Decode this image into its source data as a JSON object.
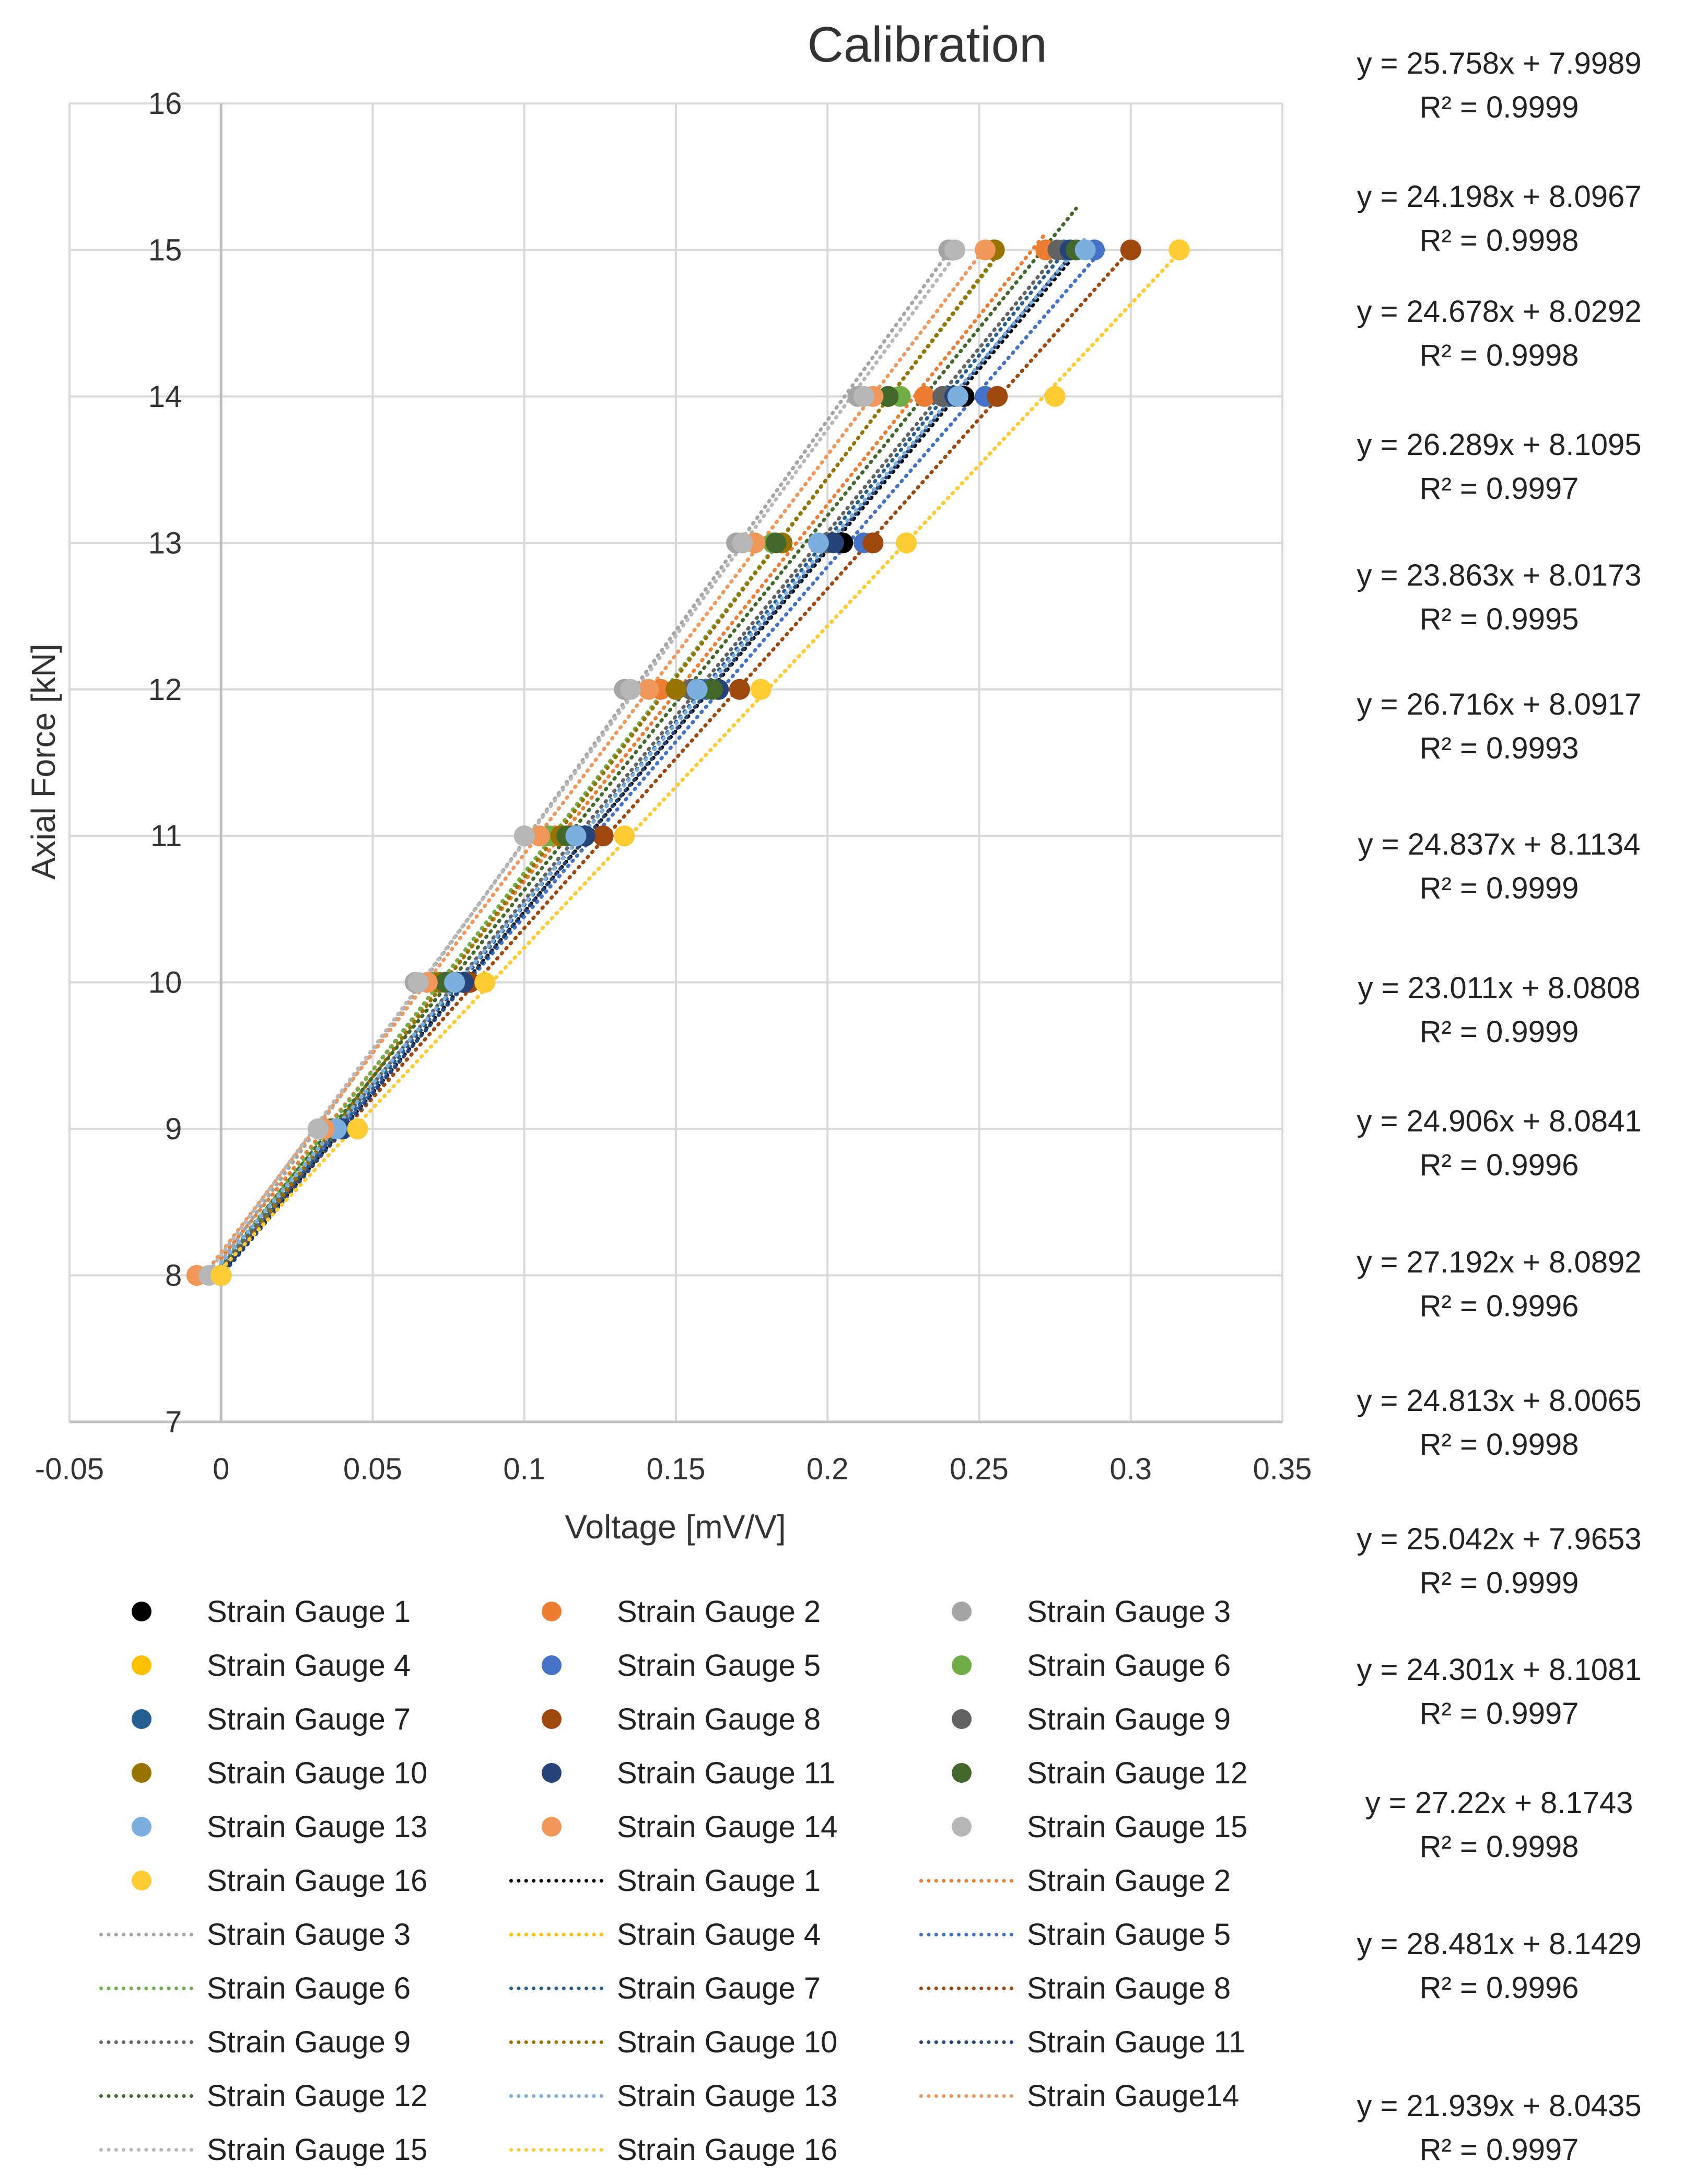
{
  "chart_data": {
    "type": "scatter",
    "title": "Calibration",
    "xlabel": "Voltage [mV/V]",
    "ylabel": "Axial Force [kN]",
    "xlim": [
      -0.05,
      0.35
    ],
    "ylim": [
      7,
      16
    ],
    "x_ticks": [
      -0.05,
      0,
      0.05,
      0.1,
      0.15,
      0.2,
      0.25,
      0.3,
      0.35
    ],
    "x_tick_labels": [
      "-0.05",
      "0",
      "0.05",
      "0.1",
      "0.15",
      "0.2",
      "0.25",
      "0.3",
      "0.35"
    ],
    "y_ticks": [
      7,
      8,
      9,
      10,
      11,
      12,
      13,
      14,
      15,
      16
    ],
    "y_tick_labels": [
      "7",
      "8",
      "9",
      "10",
      "11",
      "12",
      "13",
      "14",
      "15",
      "16"
    ],
    "grid": true,
    "trendline_style": "dotted linear",
    "y_values": [
      8,
      9,
      10,
      11,
      12,
      13,
      14,
      15
    ],
    "series": [
      {
        "name": "Strain Gauge 1",
        "trend_label": "Strain Gauge 1",
        "color": "#000000",
        "x": [
          0,
          0.04,
          0.08,
          0.12,
          0.16,
          0.205,
          0.245,
          0.28
        ]
      },
      {
        "name": "Strain Gauge 2",
        "trend_label": "Strain Gauge 2",
        "color": "#ED7D31",
        "x": [
          0,
          0.036,
          0.072,
          0.11,
          0.145,
          0.185,
          0.232,
          0.272
        ]
      },
      {
        "name": "Strain Gauge 3",
        "trend_label": "Strain Gauge 3",
        "color": "#A5A5A5",
        "x": [
          0,
          0.032,
          0.064,
          0.1,
          0.133,
          0.17,
          0.21,
          0.24
        ]
      },
      {
        "name": "Strain Gauge 4",
        "trend_label": "Strain Gauge 4",
        "color": "#FFC000",
        "x": [
          0,
          0.045,
          0.087,
          0.133,
          0.178,
          0.226,
          0.275,
          0.316
        ]
      },
      {
        "name": "Strain Gauge 5",
        "trend_label": "Strain Gauge 5",
        "color": "#4472C4",
        "x": [
          0,
          0.04,
          0.08,
          0.12,
          0.16,
          0.212,
          0.252,
          0.288
        ]
      },
      {
        "name": "Strain Gauge 6",
        "trend_label": "Strain Gauge 6",
        "color": "#70AD47",
        "x": [
          0,
          0.034,
          0.07,
          0.108,
          0.15,
          0.182,
          0.224,
          0.255
        ]
      },
      {
        "name": "Strain Gauge 7",
        "trend_label": "Strain Gauge 7",
        "color": "#255E91",
        "x": [
          0,
          0.039,
          0.078,
          0.118,
          0.158,
          0.2,
          0.24,
          0.278
        ]
      },
      {
        "name": "Strain Gauge 8",
        "trend_label": "Strain Gauge 8",
        "color": "#9E480E",
        "x": [
          0,
          0.04,
          0.082,
          0.126,
          0.171,
          0.215,
          0.256,
          0.3
        ]
      },
      {
        "name": "Strain Gauge 9",
        "trend_label": "Strain Gauge 9",
        "color": "#636363",
        "x": [
          0,
          0.038,
          0.076,
          0.116,
          0.155,
          0.2,
          0.238,
          0.276
        ]
      },
      {
        "name": "Strain Gauge 10",
        "trend_label": "Strain Gauge 10",
        "color": "#997300",
        "x": [
          0,
          0.036,
          0.072,
          0.112,
          0.15,
          0.185,
          0.22,
          0.255
        ]
      },
      {
        "name": "Strain Gauge 11",
        "trend_label": "Strain Gauge 11",
        "color": "#264478",
        "x": [
          0,
          0.04,
          0.08,
          0.12,
          0.164,
          0.202,
          0.242,
          0.28
        ]
      },
      {
        "name": "Strain Gauge 12",
        "trend_label": "Strain Gauge 12",
        "color": "#43682B",
        "x": [
          0,
          0.037,
          0.074,
          0.114,
          0.162,
          0.183,
          0.22,
          0.282
        ]
      },
      {
        "name": "Strain Gauge 13",
        "trend_label": "Strain Gauge 13",
        "color": "#7CAFDD",
        "x": [
          0,
          0.038,
          0.077,
          0.117,
          0.157,
          0.197,
          0.243,
          0.285
        ]
      },
      {
        "name": "Strain Gauge 14",
        "trend_label": "Strain Gauge14",
        "color": "#F1975A",
        "x": [
          -0.008,
          0.034,
          0.068,
          0.105,
          0.141,
          0.176,
          0.215,
          0.252
        ]
      },
      {
        "name": "Strain Gauge 15",
        "trend_label": "Strain Gauge 15",
        "color": "#B7B7B7",
        "x": [
          -0.004,
          0.032,
          0.065,
          0.1,
          0.135,
          0.172,
          0.212,
          0.242
        ]
      },
      {
        "name": "Strain Gauge 16",
        "trend_label": "Strain Gauge 16",
        "color": "#FFCD33",
        "x": [
          0,
          0.045,
          0.087,
          0.133,
          0.178,
          0.226,
          0.275,
          0.316
        ]
      }
    ],
    "trendline_equations": [
      {
        "equation": "y = 25.758x + 7.9989",
        "r2": "R² = 0.9999"
      },
      {
        "equation": "y = 24.198x + 8.0967",
        "r2": "R² = 0.9998"
      },
      {
        "equation": "y = 24.678x + 8.0292",
        "r2": "R² = 0.9998"
      },
      {
        "equation": "y = 26.289x + 8.1095",
        "r2": "R² = 0.9997"
      },
      {
        "equation": "y = 23.863x + 8.0173",
        "r2": "R² = 0.9995"
      },
      {
        "equation": "y = 26.716x + 8.0917",
        "r2": "R² = 0.9993"
      },
      {
        "equation": "y = 24.837x + 8.1134",
        "r2": "R² = 0.9999"
      },
      {
        "equation": "y = 23.011x + 8.0808",
        "r2": "R² = 0.9999"
      },
      {
        "equation": "y = 24.906x + 8.0841",
        "r2": "R² = 0.9996"
      },
      {
        "equation": "y = 27.192x + 8.0892",
        "r2": "R² = 0.9996"
      },
      {
        "equation": "y = 24.813x + 8.0065",
        "r2": "R² = 0.9998"
      },
      {
        "equation": "y = 25.042x + 7.9653",
        "r2": "R² = 0.9999"
      },
      {
        "equation": "y = 24.301x + 8.1081",
        "r2": "R² = 0.9997"
      },
      {
        "equation": "y = 27.22x + 8.1743",
        "r2": "R² = 0.9998"
      },
      {
        "equation": "y = 28.481x + 8.1429",
        "r2": "R² = 0.9996"
      },
      {
        "equation": "y = 21.939x + 8.0435",
        "r2": "R² = 0.9997"
      }
    ]
  }
}
